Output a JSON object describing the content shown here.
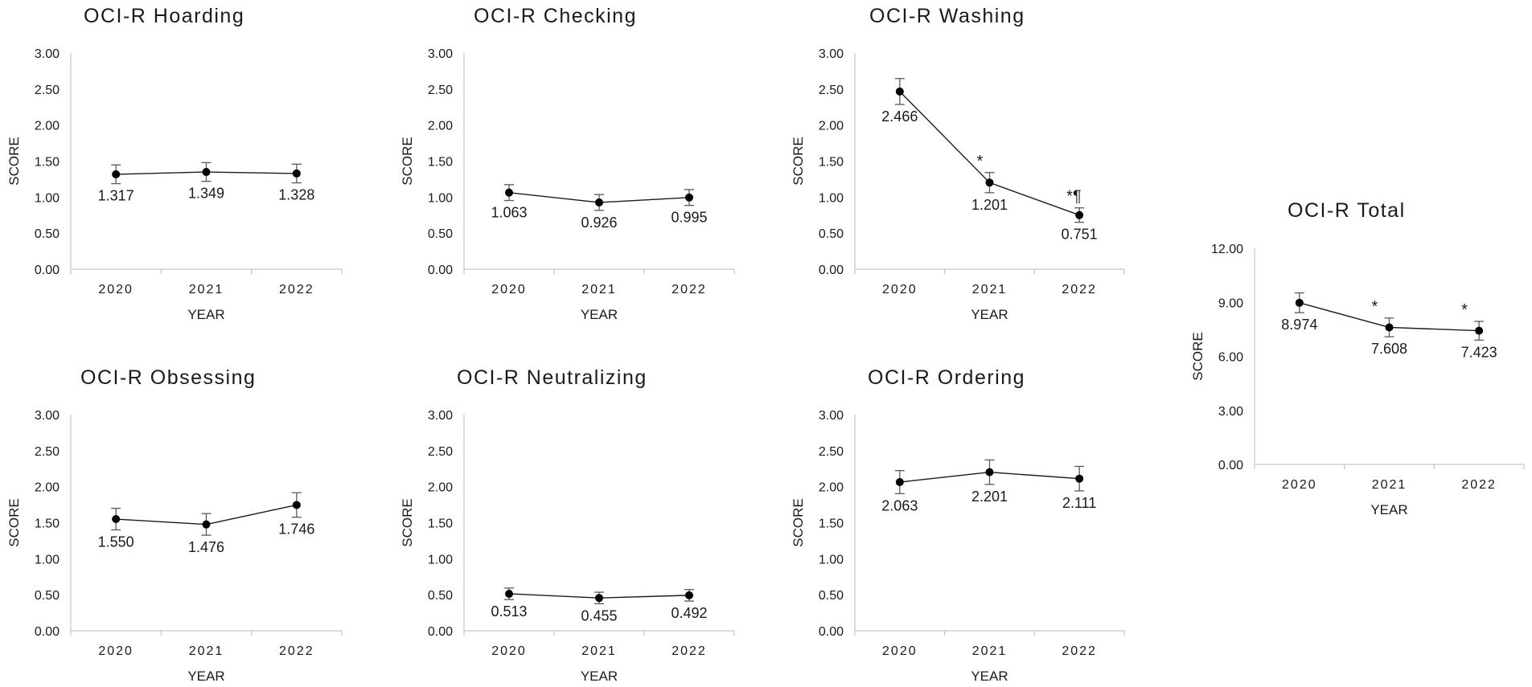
{
  "chart_data": [
    {
      "id": "hoarding",
      "type": "line",
      "title": "OCI-R Hoarding",
      "xlabel": "YEAR",
      "ylabel": "SCORE",
      "categories": [
        "2020",
        "2021",
        "2022"
      ],
      "values": [
        1.317,
        1.349,
        1.328
      ],
      "value_labels": [
        "1.317",
        "1.349",
        "1.328"
      ],
      "error": [
        0.13,
        0.13,
        0.13
      ],
      "annotations": [
        "",
        "",
        ""
      ],
      "ylim": [
        0,
        3
      ],
      "yticks": [
        "0.00",
        "0.50",
        "1.00",
        "1.50",
        "2.00",
        "2.50",
        "3.00"
      ]
    },
    {
      "id": "checking",
      "type": "line",
      "title": "OCI-R Checking",
      "xlabel": "YEAR",
      "ylabel": "SCORE",
      "categories": [
        "2020",
        "2021",
        "2022"
      ],
      "values": [
        1.063,
        0.926,
        0.995
      ],
      "value_labels": [
        "1.063",
        "0.926",
        "0.995"
      ],
      "error": [
        0.11,
        0.11,
        0.11
      ],
      "annotations": [
        "",
        "",
        ""
      ],
      "ylim": [
        0,
        3
      ],
      "yticks": [
        "0.00",
        "0.50",
        "1.00",
        "1.50",
        "2.00",
        "2.50",
        "3.00"
      ]
    },
    {
      "id": "washing",
      "type": "line",
      "title": "OCI-R Washing",
      "xlabel": "YEAR",
      "ylabel": "SCORE",
      "categories": [
        "2020",
        "2021",
        "2022"
      ],
      "values": [
        2.466,
        1.201,
        0.751
      ],
      "value_labels": [
        "2.466",
        "1.201",
        "0.751"
      ],
      "error": [
        0.18,
        0.14,
        0.1
      ],
      "annotations": [
        "",
        "*",
        "*¶"
      ],
      "ylim": [
        0,
        3
      ],
      "yticks": [
        "0.00",
        "0.50",
        "1.00",
        "1.50",
        "2.00",
        "2.50",
        "3.00"
      ]
    },
    {
      "id": "obsessing",
      "type": "line",
      "title": "OCI-R Obsessing",
      "xlabel": "YEAR",
      "ylabel": "SCORE",
      "categories": [
        "2020",
        "2021",
        "2022"
      ],
      "values": [
        1.55,
        1.476,
        1.746
      ],
      "value_labels": [
        "1.550",
        "1.476",
        "1.746"
      ],
      "error": [
        0.15,
        0.15,
        0.17
      ],
      "annotations": [
        "",
        "",
        ""
      ],
      "ylim": [
        0,
        3
      ],
      "yticks": [
        "0.00",
        "0.50",
        "1.00",
        "1.50",
        "2.00",
        "2.50",
        "3.00"
      ]
    },
    {
      "id": "neutralizing",
      "type": "line",
      "title": "OCI-R Neutralizing",
      "xlabel": "YEAR",
      "ylabel": "SCORE",
      "categories": [
        "2020",
        "2021",
        "2022"
      ],
      "values": [
        0.513,
        0.455,
        0.492
      ],
      "value_labels": [
        "0.513",
        "0.455",
        "0.492"
      ],
      "error": [
        0.08,
        0.08,
        0.08
      ],
      "annotations": [
        "",
        "",
        ""
      ],
      "ylim": [
        0,
        3
      ],
      "yticks": [
        "0.00",
        "0.50",
        "1.00",
        "1.50",
        "2.00",
        "2.50",
        "3.00"
      ]
    },
    {
      "id": "ordering",
      "type": "line",
      "title": "OCI-R Ordering",
      "xlabel": "YEAR",
      "ylabel": "SCORE",
      "categories": [
        "2020",
        "2021",
        "2022"
      ],
      "values": [
        2.063,
        2.201,
        2.111
      ],
      "value_labels": [
        "2.063",
        "2.201",
        "2.111"
      ],
      "error": [
        0.16,
        0.17,
        0.17
      ],
      "annotations": [
        "",
        "",
        ""
      ],
      "ylim": [
        0,
        3
      ],
      "yticks": [
        "0.00",
        "0.50",
        "1.00",
        "1.50",
        "2.00",
        "2.50",
        "3.00"
      ]
    },
    {
      "id": "total",
      "type": "line",
      "title": "OCI-R Total",
      "xlabel": "YEAR",
      "ylabel": "SCORE",
      "categories": [
        "2020",
        "2021",
        "2022"
      ],
      "values": [
        8.974,
        7.608,
        7.423
      ],
      "value_labels": [
        "8.974",
        "7.608",
        "7.423"
      ],
      "error": [
        0.55,
        0.52,
        0.52
      ],
      "annotations": [
        "",
        "*",
        "*"
      ],
      "ylim": [
        0,
        12
      ],
      "yticks": [
        "0.00",
        "3.00",
        "6.00",
        "9.00",
        "12.00"
      ]
    }
  ]
}
